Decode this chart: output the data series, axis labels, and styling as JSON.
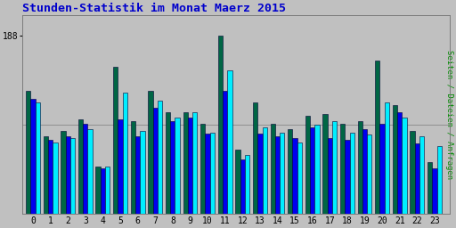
{
  "title": "Stunden-Statistik im Monat Maerz 2015",
  "title_color": "#0000cc",
  "background_color": "#c0c0c0",
  "plot_bg_color": "#c0c0c0",
  "ylabel_right": "Seiten / Dateien / Anfragen",
  "ylabel_right_color": "#008800",
  "hours": [
    0,
    1,
    2,
    3,
    4,
    5,
    6,
    7,
    8,
    9,
    10,
    11,
    12,
    13,
    14,
    15,
    16,
    17,
    18,
    19,
    20,
    21,
    22,
    23
  ],
  "ylim": [
    0,
    210
  ],
  "yline": 188,
  "ytick_label": "188",
  "grid_y": [
    94
  ],
  "green_values": [
    130,
    82,
    88,
    100,
    50,
    155,
    98,
    130,
    108,
    108,
    95,
    188,
    68,
    118,
    95,
    90,
    104,
    106,
    95,
    98,
    162,
    115,
    88,
    55
  ],
  "blue_values": [
    122,
    78,
    82,
    95,
    48,
    100,
    82,
    112,
    98,
    102,
    85,
    130,
    58,
    85,
    82,
    80,
    92,
    80,
    78,
    90,
    95,
    108,
    75,
    48
  ],
  "cyan_values": [
    118,
    76,
    80,
    90,
    50,
    128,
    88,
    120,
    102,
    108,
    86,
    152,
    62,
    92,
    86,
    76,
    94,
    98,
    86,
    84,
    118,
    102,
    82,
    72
  ],
  "bar_width": 0.27,
  "green_color": "#006644",
  "blue_color": "#0000ee",
  "cyan_color": "#00eeff",
  "edge_color": "#000033",
  "font_family": "monospace"
}
